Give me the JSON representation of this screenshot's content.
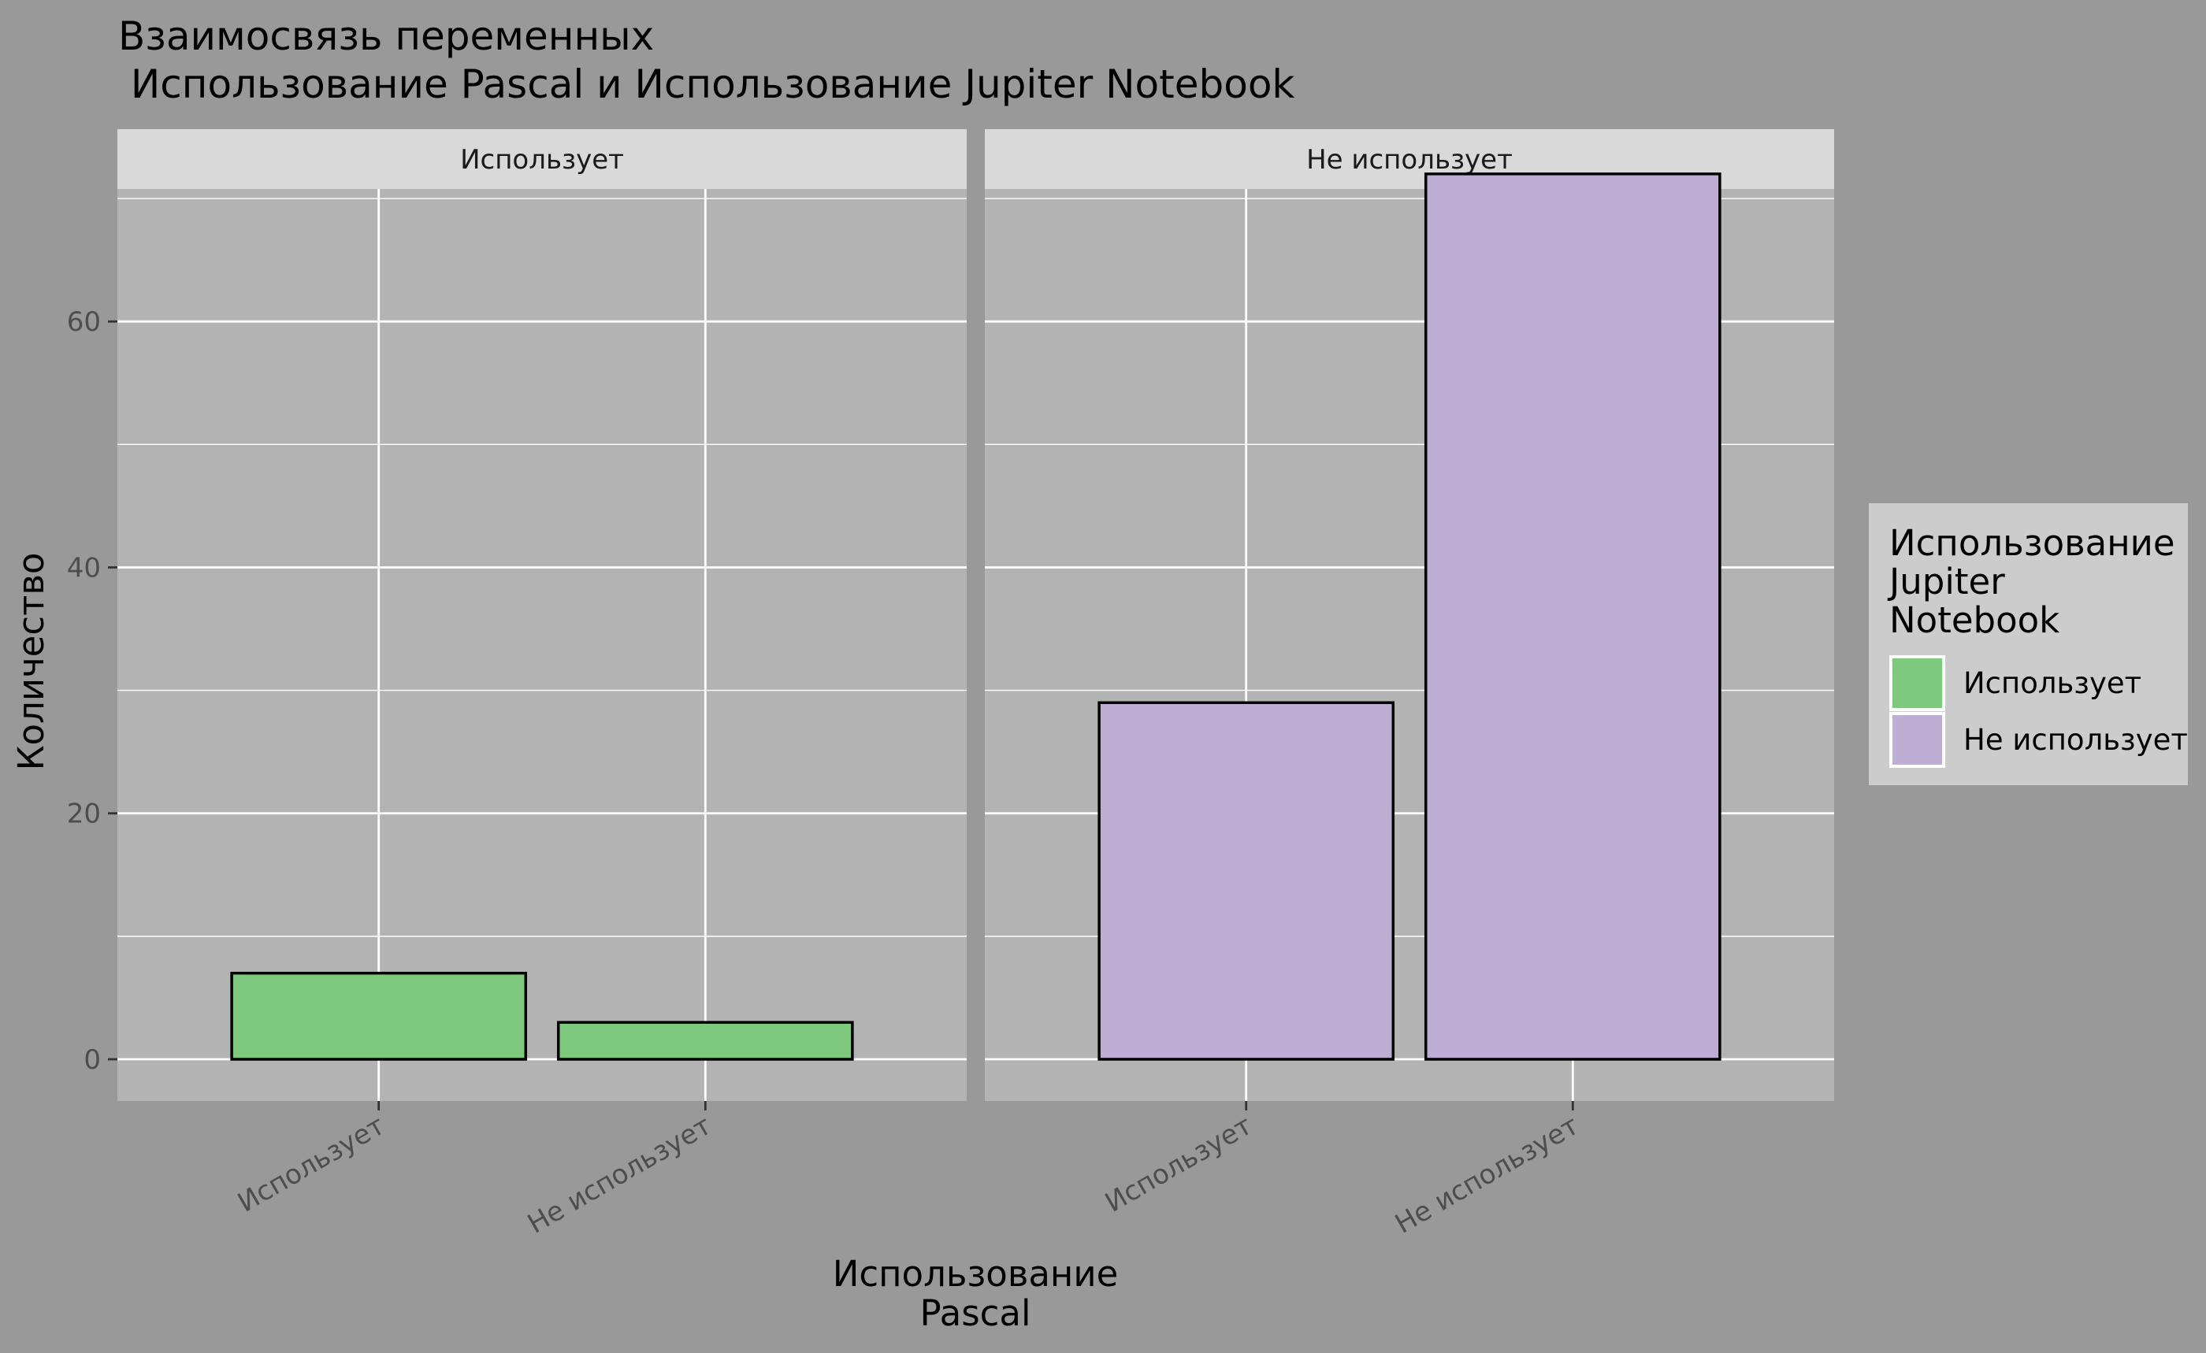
{
  "chart_data": {
    "type": "bar",
    "title_lines": [
      "Взаимосвязь переменных",
      " Использование Pascal и Использование Jupiter Notebook"
    ],
    "xlabel_lines": [
      "Использование",
      "Pascal"
    ],
    "ylabel": "Количество",
    "ylim": [
      0,
      75
    ],
    "yticks": [
      0,
      20,
      40,
      60
    ],
    "categories": [
      "Использует",
      "Не использует"
    ],
    "facets": [
      {
        "label": "Использует",
        "fill_key": "uses",
        "values": [
          7,
          3
        ]
      },
      {
        "label": "Не использует",
        "fill_key": "not_uses",
        "values": [
          29,
          72
        ]
      }
    ],
    "legend": {
      "title_lines": [
        "Использование",
        "Jupiter",
        "Notebook"
      ],
      "placement": "right",
      "items": [
        {
          "key": "uses",
          "label": "Использует",
          "color": "#7FC97F"
        },
        {
          "key": "not_uses",
          "label": "Не использует",
          "color": "#BEAED4"
        }
      ]
    },
    "grid": true,
    "colors": {
      "background": "#999999",
      "panel": "#B3B3B3",
      "strip": "#D9D9D9",
      "legend_background": "#CCCCCC",
      "grid": "#FFFFFF"
    }
  }
}
